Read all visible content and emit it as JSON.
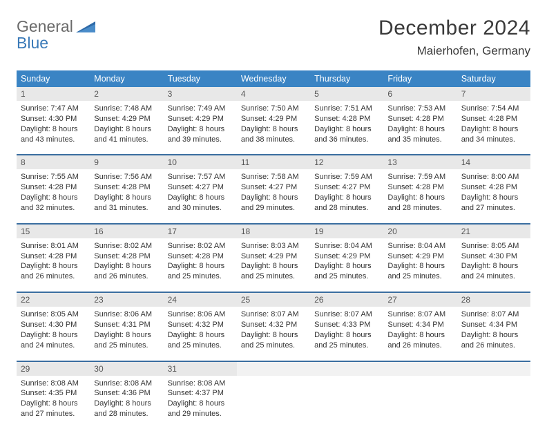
{
  "brand": {
    "part1": "General",
    "part2": "Blue"
  },
  "title": "December 2024",
  "location": "Maierhofen, Germany",
  "colors": {
    "header_bg": "#3a84c4",
    "header_text": "#ffffff",
    "row_sep": "#3a6ea0",
    "daynum_bg": "#e8e8e8",
    "empty_bg": "#f2f2f2",
    "text": "#333333",
    "brand_gray": "#6a6a6a",
    "brand_blue": "#3a7ab8"
  },
  "day_headers": [
    "Sunday",
    "Monday",
    "Tuesday",
    "Wednesday",
    "Thursday",
    "Friday",
    "Saturday"
  ],
  "weeks": [
    [
      {
        "n": "1",
        "sr": "Sunrise: 7:47 AM",
        "ss": "Sunset: 4:30 PM",
        "d1": "Daylight: 8 hours",
        "d2": "and 43 minutes."
      },
      {
        "n": "2",
        "sr": "Sunrise: 7:48 AM",
        "ss": "Sunset: 4:29 PM",
        "d1": "Daylight: 8 hours",
        "d2": "and 41 minutes."
      },
      {
        "n": "3",
        "sr": "Sunrise: 7:49 AM",
        "ss": "Sunset: 4:29 PM",
        "d1": "Daylight: 8 hours",
        "d2": "and 39 minutes."
      },
      {
        "n": "4",
        "sr": "Sunrise: 7:50 AM",
        "ss": "Sunset: 4:29 PM",
        "d1": "Daylight: 8 hours",
        "d2": "and 38 minutes."
      },
      {
        "n": "5",
        "sr": "Sunrise: 7:51 AM",
        "ss": "Sunset: 4:28 PM",
        "d1": "Daylight: 8 hours",
        "d2": "and 36 minutes."
      },
      {
        "n": "6",
        "sr": "Sunrise: 7:53 AM",
        "ss": "Sunset: 4:28 PM",
        "d1": "Daylight: 8 hours",
        "d2": "and 35 minutes."
      },
      {
        "n": "7",
        "sr": "Sunrise: 7:54 AM",
        "ss": "Sunset: 4:28 PM",
        "d1": "Daylight: 8 hours",
        "d2": "and 34 minutes."
      }
    ],
    [
      {
        "n": "8",
        "sr": "Sunrise: 7:55 AM",
        "ss": "Sunset: 4:28 PM",
        "d1": "Daylight: 8 hours",
        "d2": "and 32 minutes."
      },
      {
        "n": "9",
        "sr": "Sunrise: 7:56 AM",
        "ss": "Sunset: 4:28 PM",
        "d1": "Daylight: 8 hours",
        "d2": "and 31 minutes."
      },
      {
        "n": "10",
        "sr": "Sunrise: 7:57 AM",
        "ss": "Sunset: 4:27 PM",
        "d1": "Daylight: 8 hours",
        "d2": "and 30 minutes."
      },
      {
        "n": "11",
        "sr": "Sunrise: 7:58 AM",
        "ss": "Sunset: 4:27 PM",
        "d1": "Daylight: 8 hours",
        "d2": "and 29 minutes."
      },
      {
        "n": "12",
        "sr": "Sunrise: 7:59 AM",
        "ss": "Sunset: 4:27 PM",
        "d1": "Daylight: 8 hours",
        "d2": "and 28 minutes."
      },
      {
        "n": "13",
        "sr": "Sunrise: 7:59 AM",
        "ss": "Sunset: 4:28 PM",
        "d1": "Daylight: 8 hours",
        "d2": "and 28 minutes."
      },
      {
        "n": "14",
        "sr": "Sunrise: 8:00 AM",
        "ss": "Sunset: 4:28 PM",
        "d1": "Daylight: 8 hours",
        "d2": "and 27 minutes."
      }
    ],
    [
      {
        "n": "15",
        "sr": "Sunrise: 8:01 AM",
        "ss": "Sunset: 4:28 PM",
        "d1": "Daylight: 8 hours",
        "d2": "and 26 minutes."
      },
      {
        "n": "16",
        "sr": "Sunrise: 8:02 AM",
        "ss": "Sunset: 4:28 PM",
        "d1": "Daylight: 8 hours",
        "d2": "and 26 minutes."
      },
      {
        "n": "17",
        "sr": "Sunrise: 8:02 AM",
        "ss": "Sunset: 4:28 PM",
        "d1": "Daylight: 8 hours",
        "d2": "and 25 minutes."
      },
      {
        "n": "18",
        "sr": "Sunrise: 8:03 AM",
        "ss": "Sunset: 4:29 PM",
        "d1": "Daylight: 8 hours",
        "d2": "and 25 minutes."
      },
      {
        "n": "19",
        "sr": "Sunrise: 8:04 AM",
        "ss": "Sunset: 4:29 PM",
        "d1": "Daylight: 8 hours",
        "d2": "and 25 minutes."
      },
      {
        "n": "20",
        "sr": "Sunrise: 8:04 AM",
        "ss": "Sunset: 4:29 PM",
        "d1": "Daylight: 8 hours",
        "d2": "and 25 minutes."
      },
      {
        "n": "21",
        "sr": "Sunrise: 8:05 AM",
        "ss": "Sunset: 4:30 PM",
        "d1": "Daylight: 8 hours",
        "d2": "and 24 minutes."
      }
    ],
    [
      {
        "n": "22",
        "sr": "Sunrise: 8:05 AM",
        "ss": "Sunset: 4:30 PM",
        "d1": "Daylight: 8 hours",
        "d2": "and 24 minutes."
      },
      {
        "n": "23",
        "sr": "Sunrise: 8:06 AM",
        "ss": "Sunset: 4:31 PM",
        "d1": "Daylight: 8 hours",
        "d2": "and 25 minutes."
      },
      {
        "n": "24",
        "sr": "Sunrise: 8:06 AM",
        "ss": "Sunset: 4:32 PM",
        "d1": "Daylight: 8 hours",
        "d2": "and 25 minutes."
      },
      {
        "n": "25",
        "sr": "Sunrise: 8:07 AM",
        "ss": "Sunset: 4:32 PM",
        "d1": "Daylight: 8 hours",
        "d2": "and 25 minutes."
      },
      {
        "n": "26",
        "sr": "Sunrise: 8:07 AM",
        "ss": "Sunset: 4:33 PM",
        "d1": "Daylight: 8 hours",
        "d2": "and 25 minutes."
      },
      {
        "n": "27",
        "sr": "Sunrise: 8:07 AM",
        "ss": "Sunset: 4:34 PM",
        "d1": "Daylight: 8 hours",
        "d2": "and 26 minutes."
      },
      {
        "n": "28",
        "sr": "Sunrise: 8:07 AM",
        "ss": "Sunset: 4:34 PM",
        "d1": "Daylight: 8 hours",
        "d2": "and 26 minutes."
      }
    ],
    [
      {
        "n": "29",
        "sr": "Sunrise: 8:08 AM",
        "ss": "Sunset: 4:35 PM",
        "d1": "Daylight: 8 hours",
        "d2": "and 27 minutes."
      },
      {
        "n": "30",
        "sr": "Sunrise: 8:08 AM",
        "ss": "Sunset: 4:36 PM",
        "d1": "Daylight: 8 hours",
        "d2": "and 28 minutes."
      },
      {
        "n": "31",
        "sr": "Sunrise: 8:08 AM",
        "ss": "Sunset: 4:37 PM",
        "d1": "Daylight: 8 hours",
        "d2": "and 29 minutes."
      },
      null,
      null,
      null,
      null
    ]
  ]
}
